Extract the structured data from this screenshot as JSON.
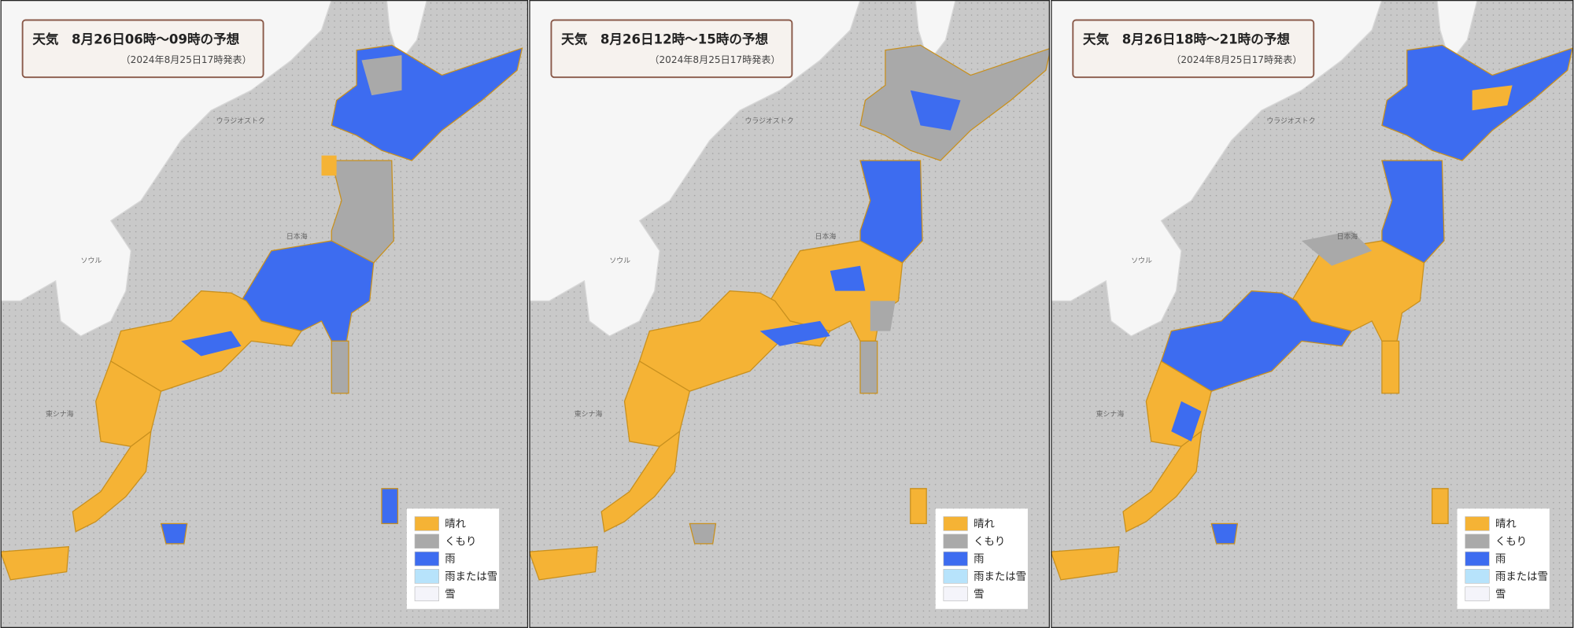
{
  "panels": [
    {
      "title": "天気　8月26日06時～09時の予想",
      "subtitle": "（2024年8月25日17時発表）"
    },
    {
      "title": "天気　8月26日12時～15時の予想",
      "subtitle": "（2024年8月25日17時発表）"
    },
    {
      "title": "天気　8月26日18時～21時の予想",
      "subtitle": "（2024年8月25日17時発表）"
    }
  ],
  "legend": [
    {
      "label": "晴れ",
      "color": "#f5b335"
    },
    {
      "label": "くもり",
      "color": "#a9a9a9"
    },
    {
      "label": "雨",
      "color": "#3d6cf0"
    },
    {
      "label": "雨または雪",
      "color": "#b7e3fb"
    },
    {
      "label": "雪",
      "color": "#f4f4fa"
    }
  ],
  "map_labels": [
    "日本海",
    "東シナ海",
    "ウラジオストク",
    "ソウル"
  ]
}
